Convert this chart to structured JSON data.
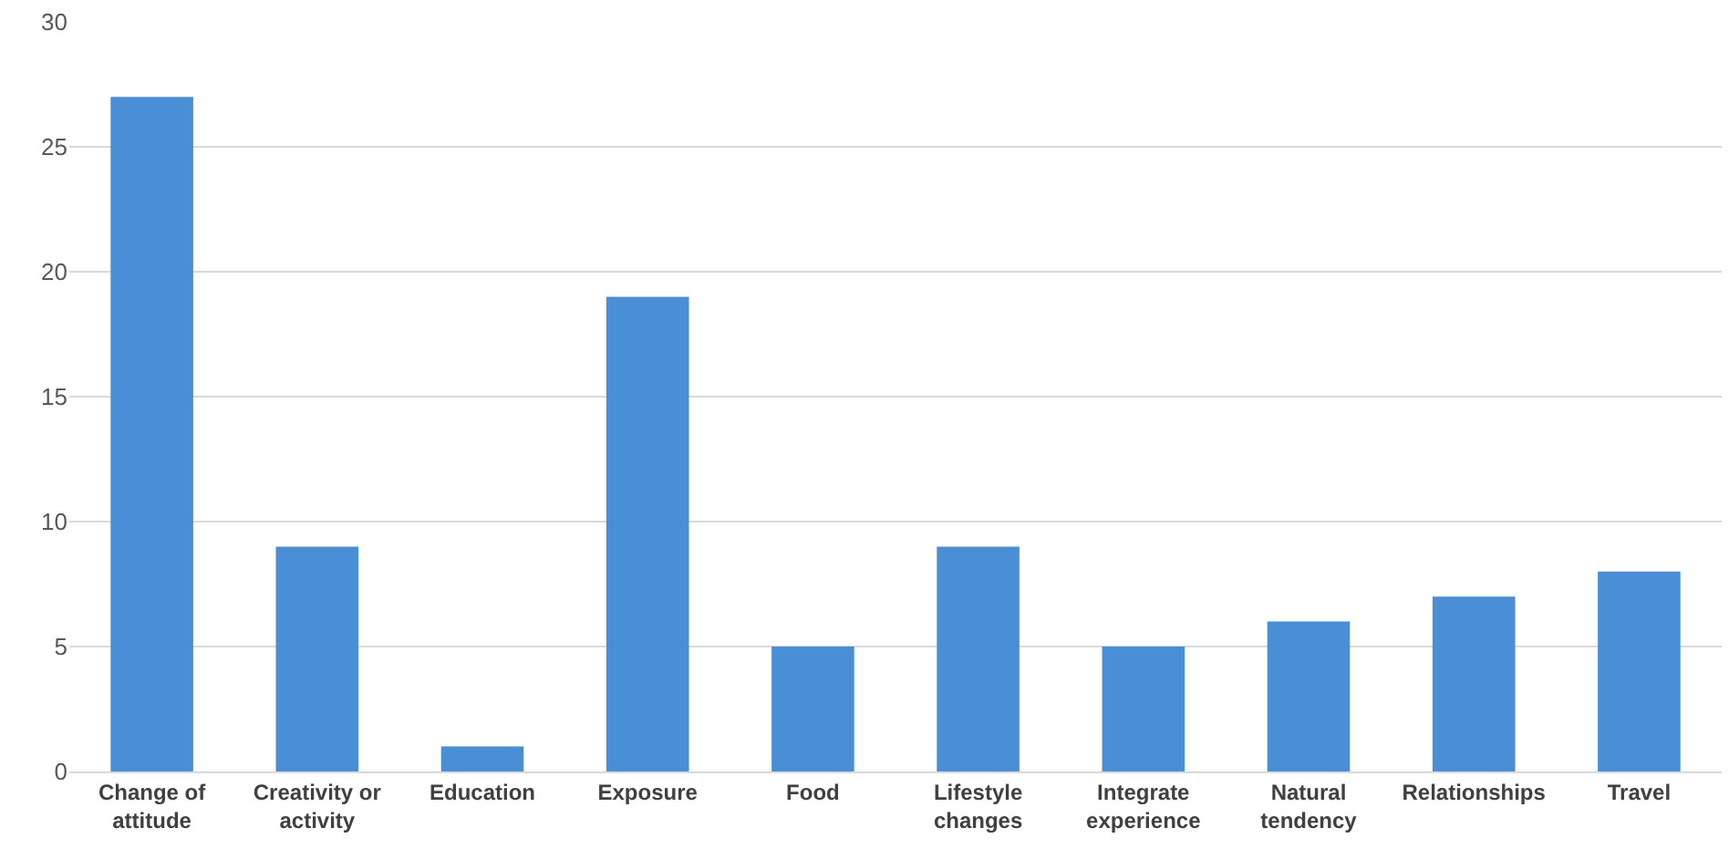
{
  "chart_data": {
    "type": "bar",
    "categories": [
      "Change of attitude",
      "Creativity or activity",
      "Education",
      "Exposure",
      "Food",
      "Lifestyle changes",
      "Integrate experience",
      "Natural tendency",
      "Relationships",
      "Travel"
    ],
    "values": [
      27,
      9,
      1,
      19,
      5,
      9,
      5,
      6,
      7,
      8
    ],
    "color": "#4a8fd6",
    "ylim": [
      0,
      30
    ],
    "yticks": [
      0,
      5,
      10,
      15,
      20,
      25,
      30
    ],
    "grid": "y"
  }
}
